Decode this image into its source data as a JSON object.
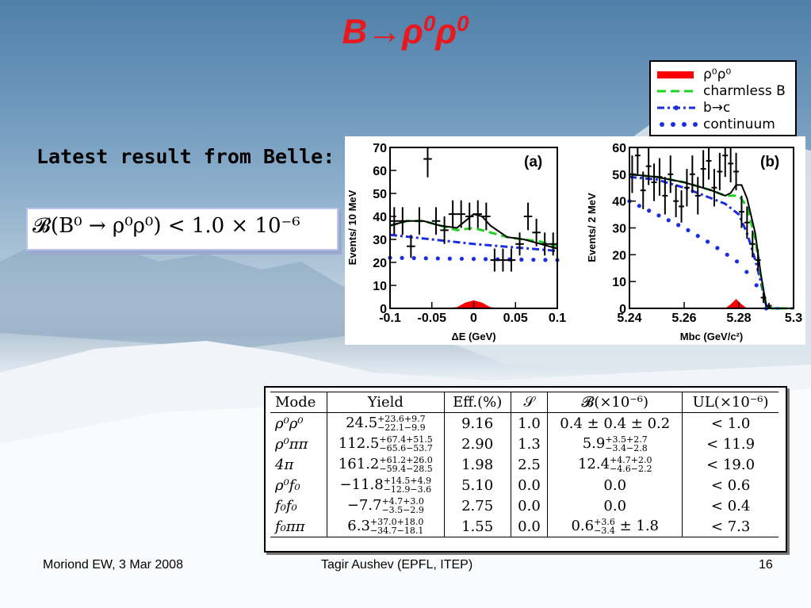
{
  "slide": {
    "title_main": "B→ρ",
    "title_sup": "0",
    "title_rho2": "ρ",
    "subtitle": "Latest result from Belle:",
    "formula": "𝓑(B⁰ → ρ⁰ρ⁰) < 1.0 × 10⁻⁶",
    "footer_left": "Moriond EW, 3 Mar 2008",
    "footer_center": "Tagir Aushev (EPFL, ITEP)",
    "footer_right": "16"
  },
  "legend": {
    "items": [
      {
        "label": "ρ⁰ρ⁰",
        "color": "#ff0000",
        "style": "filled"
      },
      {
        "label": "charmless B",
        "color": "#1fd11f",
        "style": "dashed"
      },
      {
        "label": "b→c",
        "color": "#1a2ee0",
        "style": "dash-dot"
      },
      {
        "label": "continuum",
        "color": "#1a2ee0",
        "style": "dotted"
      }
    ]
  },
  "chart_data": [
    {
      "type": "line",
      "panel_label": "(a)",
      "xlabel": "ΔE (GeV)",
      "ylabel": "Events/ 10 MeV",
      "xlim": [
        -0.1,
        0.1
      ],
      "ylim": [
        0,
        70
      ],
      "xticks": [
        "-0.1",
        "-0.05",
        "0",
        "0.05",
        "0.1"
      ],
      "yticks": [
        "0",
        "10",
        "20",
        "30",
        "40",
        "50",
        "60",
        "70"
      ],
      "grid": false,
      "data_points": {
        "x": [
          -0.095,
          -0.085,
          -0.075,
          -0.065,
          -0.055,
          -0.045,
          -0.035,
          -0.025,
          -0.015,
          -0.005,
          0.005,
          0.015,
          0.025,
          0.035,
          0.045,
          0.055,
          0.065,
          0.075,
          0.085,
          0.095
        ],
        "y": [
          38,
          38,
          27,
          38,
          65,
          38,
          34,
          41,
          41,
          40,
          41,
          40,
          21,
          21,
          21,
          28,
          40,
          33,
          28,
          28
        ],
        "err": [
          6,
          6,
          5,
          6,
          8,
          6,
          6,
          6,
          6,
          6,
          6,
          6,
          5,
          5,
          5,
          5,
          6,
          6,
          5,
          5
        ]
      },
      "series": [
        {
          "name": "continuum",
          "x": [
            -0.1,
            0.1
          ],
          "y": [
            22,
            21
          ]
        },
        {
          "name": "b→c",
          "x": [
            -0.1,
            -0.05,
            0,
            0.05,
            0.1
          ],
          "y": [
            32,
            30,
            28,
            26.5,
            25
          ]
        },
        {
          "name": "charmless B",
          "x": [
            -0.1,
            -0.08,
            -0.06,
            -0.04,
            -0.02,
            0,
            0.02,
            0.04,
            0.06,
            0.08,
            0.1
          ],
          "y": [
            36,
            38,
            38,
            36,
            34,
            35,
            33,
            31,
            30,
            29,
            27
          ]
        },
        {
          "name": "total",
          "x": [
            -0.1,
            -0.08,
            -0.06,
            -0.04,
            -0.02,
            -0.01,
            0,
            0.01,
            0.02,
            0.04,
            0.06,
            0.08,
            0.1
          ],
          "y": [
            36,
            38,
            38,
            36,
            35,
            38,
            41,
            40,
            36,
            31,
            30,
            28,
            26
          ]
        },
        {
          "name": "ρ⁰ρ⁰",
          "x": [
            -0.1,
            -0.04,
            -0.02,
            -0.01,
            0,
            0.01,
            0.02,
            0.04,
            0.1
          ],
          "y": [
            0,
            0,
            0.5,
            2.5,
            3.5,
            2.5,
            0.5,
            0,
            0
          ]
        }
      ]
    },
    {
      "type": "line",
      "panel_label": "(b)",
      "xlabel": "Mbc (GeV/c²)",
      "ylabel": "Events/ 2 MeV",
      "xlim": [
        5.24,
        5.3
      ],
      "ylim": [
        0,
        60
      ],
      "xticks": [
        "5.24",
        "5.26",
        "5.28",
        "5.3"
      ],
      "yticks": [
        "0",
        "10",
        "20",
        "30",
        "40",
        "50",
        "60"
      ],
      "grid": false,
      "data_points": {
        "x": [
          5.241,
          5.243,
          5.245,
          5.247,
          5.249,
          5.251,
          5.253,
          5.255,
          5.257,
          5.259,
          5.261,
          5.263,
          5.265,
          5.267,
          5.269,
          5.271,
          5.273,
          5.275,
          5.277,
          5.279,
          5.281,
          5.283,
          5.285,
          5.287,
          5.289,
          5.291
        ],
        "y": [
          50,
          57,
          44,
          53,
          47,
          49,
          42,
          50,
          40,
          38,
          45,
          50,
          42,
          52,
          55,
          45,
          51,
          57,
          54,
          51,
          36,
          32,
          24,
          18,
          4,
          1
        ],
        "err": [
          7,
          7,
          7,
          7,
          7,
          7,
          7,
          7,
          6,
          6,
          7,
          7,
          7,
          7,
          7,
          7,
          7,
          8,
          7,
          7,
          6,
          6,
          5,
          4,
          2,
          1
        ]
      },
      "series": [
        {
          "name": "continuum",
          "x": [
            5.24,
            5.25,
            5.26,
            5.27,
            5.28,
            5.285,
            5.288,
            5.29
          ],
          "y": [
            40,
            35,
            30,
            24,
            17,
            11,
            6,
            0
          ]
        },
        {
          "name": "b→c",
          "x": [
            5.24,
            5.25,
            5.26,
            5.27,
            5.275,
            5.28,
            5.283,
            5.286,
            5.288,
            5.29,
            5.292,
            5.3
          ],
          "y": [
            49,
            48,
            45,
            41,
            39,
            35,
            28,
            18,
            10,
            1,
            0,
            0
          ]
        },
        {
          "name": "charmless B",
          "x": [
            5.24,
            5.25,
            5.26,
            5.27,
            5.275,
            5.28,
            5.283,
            5.286,
            5.288,
            5.29,
            5.292,
            5.3
          ],
          "y": [
            50,
            49,
            47,
            44,
            42,
            42,
            38,
            26,
            12,
            1,
            0,
            0
          ]
        },
        {
          "name": "total",
          "x": [
            5.24,
            5.25,
            5.26,
            5.27,
            5.275,
            5.277,
            5.279,
            5.281,
            5.283,
            5.286,
            5.288,
            5.29,
            5.292,
            5.3
          ],
          "y": [
            50,
            49,
            47,
            44,
            42,
            43,
            46,
            46,
            41,
            28,
            13,
            1,
            0,
            0
          ]
        },
        {
          "name": "ρ⁰ρ⁰",
          "x": [
            5.24,
            5.275,
            5.277,
            5.279,
            5.281,
            5.283,
            5.3
          ],
          "y": [
            0,
            0,
            1.5,
            3.5,
            1.5,
            0,
            0
          ]
        }
      ]
    }
  ],
  "results_table": {
    "headers": [
      "Mode",
      "Yield",
      "Eff.(%)",
      "𝒮",
      "𝓑(×10⁻⁶)",
      "UL(×10⁻⁶)"
    ],
    "rows": [
      {
        "mode": "ρ⁰ρ⁰",
        "yield": "24.5",
        "y_up": "+23.6+9.7",
        "y_dn": "−22.1−9.9",
        "eff": "9.16",
        "s": "1.0",
        "bf": "0.4 ± 0.4 ± 0.2",
        "bf_up": "",
        "bf_dn": "",
        "bf_tail": "",
        "ul": "< 1.0"
      },
      {
        "mode": "ρ⁰ππ",
        "yield": "112.5",
        "y_up": "+67.4+51.5",
        "y_dn": "−65.6−53.7",
        "eff": "2.90",
        "s": "1.3",
        "bf": "5.9",
        "bf_up": "+3.5+2.7",
        "bf_dn": "−3.4−2.8",
        "bf_tail": "",
        "ul": "< 11.9"
      },
      {
        "mode": "4π",
        "yield": "161.2",
        "y_up": "+61.2+26.0",
        "y_dn": "−59.4−28.5",
        "eff": "1.98",
        "s": "2.5",
        "bf": "12.4",
        "bf_up": "+4.7+2.0",
        "bf_dn": "−4.6−2.2",
        "bf_tail": "",
        "ul": "< 19.0"
      },
      {
        "mode": "ρ⁰f₀",
        "yield": "−11.8",
        "y_up": "+14.5+4.9",
        "y_dn": "−12.9−3.6",
        "eff": "5.10",
        "s": "0.0",
        "bf": "0.0",
        "bf_up": "",
        "bf_dn": "",
        "bf_tail": "",
        "ul": "< 0.6"
      },
      {
        "mode": "f₀f₀",
        "yield": "−7.7",
        "y_up": "+4.7+3.0",
        "y_dn": "−3.5−2.9",
        "eff": "2.75",
        "s": "0.0",
        "bf": "0.0",
        "bf_up": "",
        "bf_dn": "",
        "bf_tail": "",
        "ul": "< 0.4"
      },
      {
        "mode": "f₀ππ",
        "yield": "6.3",
        "y_up": "+37.0+18.0",
        "y_dn": "−34.7−18.1",
        "eff": "1.55",
        "s": "0.0",
        "bf": "0.6",
        "bf_up": "+3.6",
        "bf_dn": "−3.4",
        "bf_tail": " ± 1.8",
        "ul": "< 7.3"
      }
    ]
  }
}
